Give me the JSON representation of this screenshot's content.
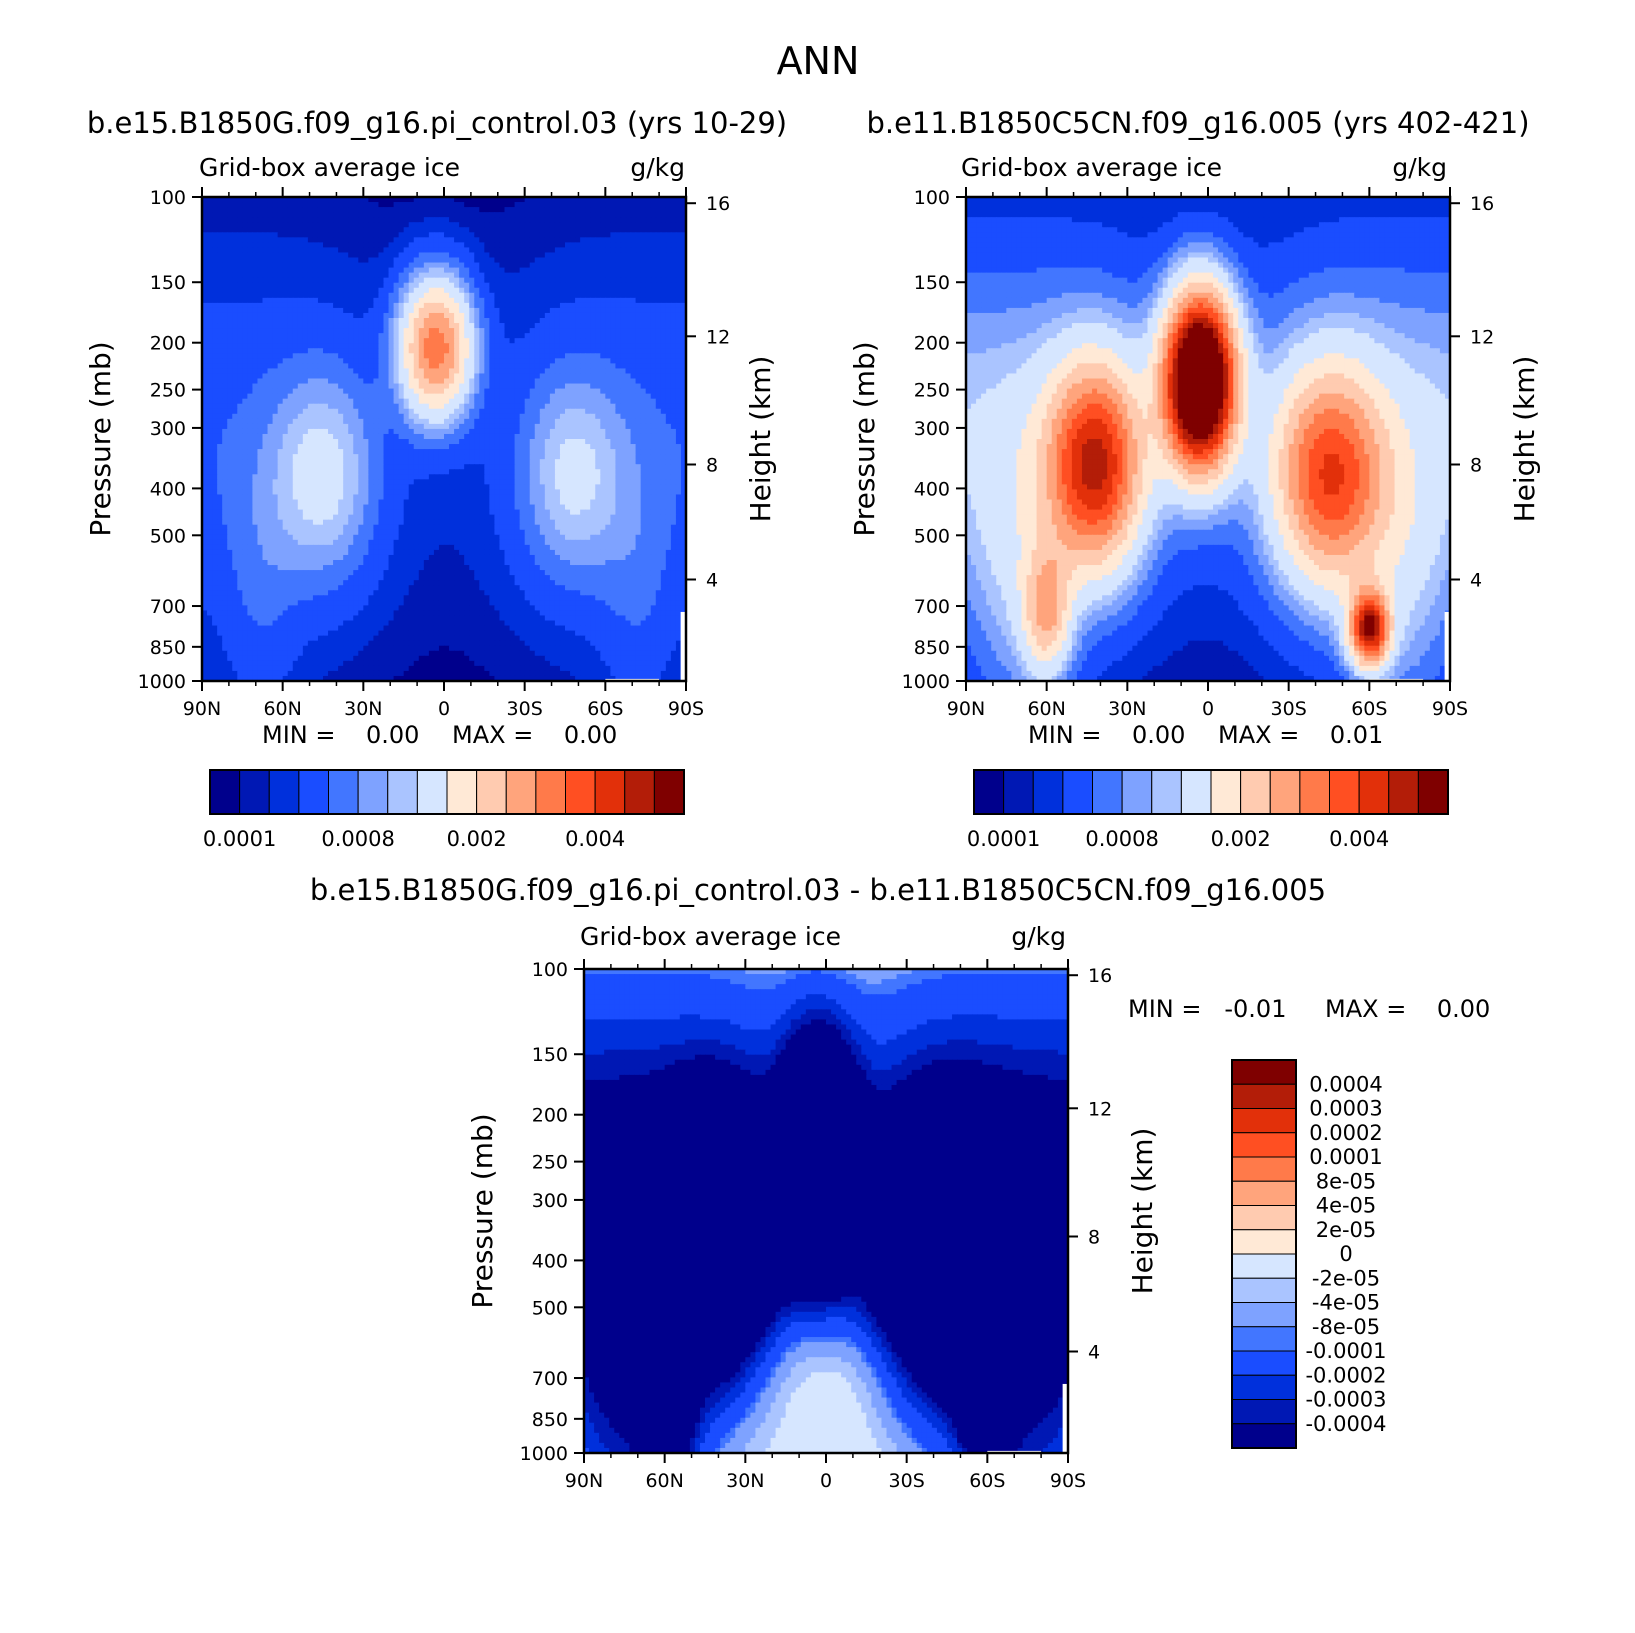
{
  "figure_title": "ANN",
  "panel_a": {
    "title": "b.e15.B1850G.f09_g16.pi_control.03 (yrs 10-29)",
    "variable": "Grid-box average ice",
    "units": "g/kg",
    "min_text": "MIN =    0.00",
    "max_text": "MAX =    0.00"
  },
  "panel_b": {
    "title": "b.e11.B1850C5CN.f09_g16.005 (yrs 402-421)",
    "variable": "Grid-box average ice",
    "units": "g/kg",
    "min_text": "MIN =    0.00",
    "max_text": "MAX =    0.01"
  },
  "panel_c": {
    "title": "b.e15.B1850G.f09_g16.pi_control.03 - b.e11.B1850C5CN.f09_g16.005",
    "variable": "Grid-box average ice",
    "units": "g/kg",
    "min_text": "MIN =   -0.01",
    "max_text": "MAX =    0.00"
  },
  "axes": {
    "ylabel": "Pressure (mb)",
    "ylabel_right": "Height (km)",
    "pressure_ticks": [
      "100",
      "150",
      "200",
      "250",
      "300",
      "400",
      "500",
      "700",
      "850",
      "1000"
    ],
    "height_ticks": [
      "16",
      "12",
      "8",
      "4"
    ],
    "lat_ticks": [
      "90N",
      "60N",
      "30N",
      "0",
      "30S",
      "60S",
      "90S"
    ]
  },
  "colorbar_ab": {
    "colors": [
      "#00008c",
      "#0018b4",
      "#0030dc",
      "#1a4dff",
      "#4276ff",
      "#7ea2ff",
      "#aac4ff",
      "#d6e6ff",
      "#ffe9d6",
      "#ffcbb0",
      "#ffa47c",
      "#ff7a4a",
      "#ff4f22",
      "#e2300a",
      "#b31d08",
      "#7f0000"
    ],
    "labels": [
      "0.0001",
      "0.0008",
      "0.002",
      "0.004"
    ]
  },
  "colorbar_c": {
    "colors": [
      "#7f0000",
      "#b31d08",
      "#e2300a",
      "#ff4f22",
      "#ff7a4a",
      "#ffa47c",
      "#ffcbb0",
      "#ffe9d6",
      "#d6e6ff",
      "#aac4ff",
      "#7ea2ff",
      "#4276ff",
      "#1a4dff",
      "#0030dc",
      "#0018b4",
      "#00008c"
    ],
    "labels": [
      "0.0004",
      "0.0003",
      "0.0002",
      "0.0001",
      "8e-05",
      "4e-05",
      "2e-05",
      "0",
      "-2e-05",
      "-4e-05",
      "-8e-05",
      "-0.0001",
      "-0.0002",
      "-0.0003",
      "-0.0004"
    ]
  },
  "chart_data": [
    {
      "type": "heatmap",
      "title": "b.e15.B1850G.f09_g16.pi_control.03 (yrs 10-29)",
      "subtitle": "Grid-box average ice",
      "units": "g/kg",
      "xlabel": "",
      "ylabel": "Pressure (mb)",
      "ylabel_right": "Height (km)",
      "x_range": [
        "90N",
        "90S"
      ],
      "y_range": [
        100,
        1000
      ],
      "min": 0.0,
      "max": 0.0,
      "contour_levels": [
        0.0001,
        0.0008,
        0.002,
        0.004
      ]
    },
    {
      "type": "heatmap",
      "title": "b.e11.B1850C5CN.f09_g16.005 (yrs 402-421)",
      "subtitle": "Grid-box average ice",
      "units": "g/kg",
      "xlabel": "",
      "ylabel": "Pressure (mb)",
      "ylabel_right": "Height (km)",
      "x_range": [
        "90N",
        "90S"
      ],
      "y_range": [
        100,
        1000
      ],
      "min": 0.0,
      "max": 0.01,
      "contour_levels": [
        0.0001,
        0.0008,
        0.002,
        0.004
      ]
    },
    {
      "type": "heatmap",
      "title": "b.e15.B1850G.f09_g16.pi_control.03 - b.e11.B1850C5CN.f09_g16.005",
      "subtitle": "Grid-box average ice",
      "units": "g/kg",
      "xlabel": "",
      "ylabel": "Pressure (mb)",
      "ylabel_right": "Height (km)",
      "x_range": [
        "90N",
        "90S"
      ],
      "y_range": [
        100,
        1000
      ],
      "min": -0.01,
      "max": 0.0,
      "contour_levels": [
        0.0004,
        0.0003,
        0.0002,
        0.0001,
        8e-05,
        4e-05,
        2e-05,
        0,
        -2e-05,
        -4e-05,
        -8e-05,
        -0.0001,
        -0.0002,
        -0.0003,
        -0.0004
      ]
    }
  ]
}
